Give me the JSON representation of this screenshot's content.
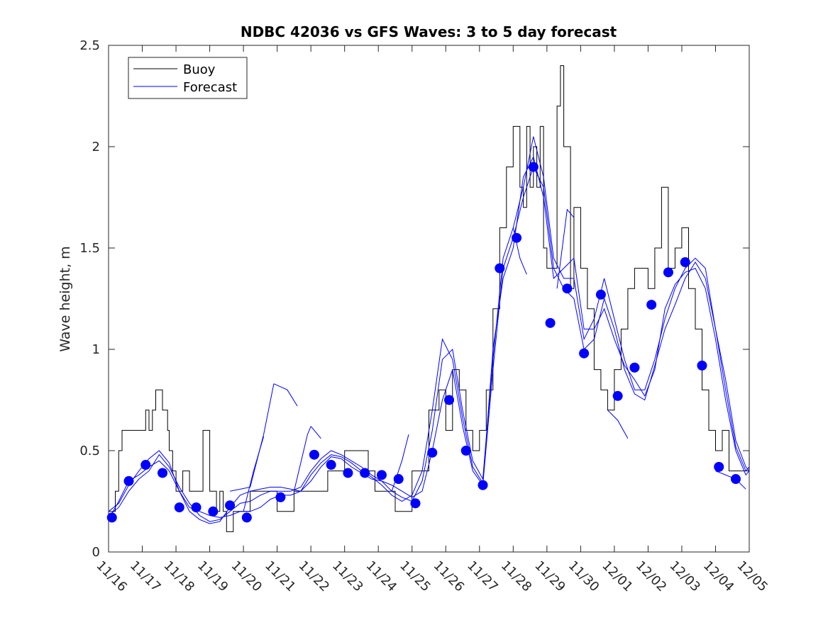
{
  "chart_data": {
    "type": "line",
    "title": "NDBC 42036 vs GFS Waves: 3 to 5 day forecast",
    "xlabel": "",
    "ylabel": "Wave height, m",
    "xlim": [
      0,
      19
    ],
    "ylim": [
      0,
      2.5
    ],
    "yticks": [
      0,
      0.5,
      1,
      1.5,
      2,
      2.5
    ],
    "ytick_labels": [
      "0",
      "0.5",
      "1",
      "1.5",
      "2",
      "2.5"
    ],
    "xtick_labels": [
      "11/16",
      "11/17",
      "11/18",
      "11/19",
      "11/20",
      "11/21",
      "11/22",
      "11/23",
      "11/24",
      "11/25",
      "11/26",
      "11/27",
      "11/28",
      "11/29",
      "11/30",
      "12/01",
      "12/02",
      "12/03",
      "12/04",
      "12/05"
    ],
    "grid": false,
    "legend_position": "top-left",
    "legend": [
      {
        "label": "Buoy",
        "color": "#000000"
      },
      {
        "label": "Forecast",
        "color": "#0000ff"
      }
    ],
    "buoy": {
      "name": "Buoy",
      "color": "#000000",
      "x": [
        0,
        0.1,
        0.2,
        0.3,
        0.4,
        0.6,
        0.8,
        1.0,
        1.1,
        1.2,
        1.3,
        1.4,
        1.5,
        1.6,
        1.7,
        1.75,
        1.8,
        1.9,
        2.0,
        2.2,
        2.4,
        2.6,
        2.8,
        3.0,
        3.2,
        3.3,
        3.4,
        3.5,
        3.6,
        3.7,
        3.9,
        4.0,
        4.2,
        4.4,
        4.6,
        4.8,
        5.0,
        5.5,
        6.0,
        6.5,
        7.0,
        7.5,
        7.7,
        7.9,
        8.0,
        8.5,
        9.0,
        9.2,
        9.5,
        9.8,
        10.0,
        10.2,
        10.4,
        10.6,
        10.8,
        11.0,
        11.2,
        11.4,
        11.6,
        11.8,
        12.0,
        12.2,
        12.3,
        12.4,
        12.5,
        12.6,
        12.7,
        12.8,
        12.9,
        13.0,
        13.1,
        13.3,
        13.4,
        13.5,
        13.7,
        13.8,
        14.0,
        14.2,
        14.4,
        14.6,
        14.8,
        15.0,
        15.2,
        15.4,
        15.6,
        15.8,
        16.0,
        16.2,
        16.4,
        16.6,
        16.8,
        17.0,
        17.2,
        17.4,
        17.6,
        17.8,
        18.0,
        18.2,
        18.4,
        18.6,
        18.8,
        19.0
      ],
      "values": [
        0.2,
        0.2,
        0.3,
        0.5,
        0.6,
        0.6,
        0.6,
        0.6,
        0.7,
        0.6,
        0.7,
        0.8,
        0.8,
        0.7,
        0.7,
        0.6,
        0.5,
        0.4,
        0.3,
        0.4,
        0.3,
        0.3,
        0.6,
        0.3,
        0.2,
        0.3,
        0.2,
        0.1,
        0.1,
        0.2,
        0.2,
        0.2,
        0.3,
        0.3,
        0.3,
        0.3,
        0.2,
        0.3,
        0.3,
        0.4,
        0.5,
        0.5,
        0.4,
        0.3,
        0.3,
        0.2,
        0.4,
        0.4,
        0.7,
        0.8,
        0.6,
        0.9,
        0.8,
        0.6,
        0.5,
        0.6,
        0.8,
        1.2,
        1.6,
        1.9,
        2.1,
        1.8,
        1.7,
        2.1,
        1.8,
        2.0,
        1.8,
        2.1,
        1.5,
        1.4,
        1.4,
        2.2,
        2.4,
        2.0,
        1.3,
        1.7,
        1.4,
        1.2,
        0.9,
        0.8,
        0.7,
        0.9,
        1.1,
        1.3,
        1.4,
        1.4,
        1.3,
        1.5,
        1.8,
        1.4,
        1.5,
        1.6,
        1.3,
        1.1,
        0.8,
        0.6,
        0.5,
        0.6,
        0.4,
        0.4,
        0.4,
        0.5
      ],
      "alt_x": [],
      "alt_values": []
    },
    "forecast_lines": [
      {
        "x": [
          0,
          0.3,
          0.6,
          0.9,
          1.2,
          1.5,
          1.8,
          2.1,
          2.4,
          2.7,
          3.0,
          3.3,
          3.6,
          3.9,
          4.2,
          4.5,
          4.8,
          5.1,
          5.4,
          5.7,
          6.0,
          6.3,
          6.6,
          6.9,
          7.2,
          7.5,
          7.8,
          8.1,
          8.4,
          8.7,
          9.0,
          9.3,
          9.6,
          9.9,
          10.2,
          10.5,
          10.8,
          11.1,
          11.4,
          11.7,
          12.0,
          12.3,
          12.6,
          12.9,
          13.2,
          13.5,
          13.8,
          14.1,
          14.4,
          14.7,
          15.0,
          15.3,
          15.6,
          15.9,
          16.2,
          16.5,
          16.8,
          17.1,
          17.4,
          17.7,
          18.0,
          18.3,
          18.6,
          18.9,
          19.0
        ],
        "values": [
          0.16,
          0.25,
          0.35,
          0.38,
          0.42,
          0.45,
          0.4,
          0.3,
          0.22,
          0.2,
          0.18,
          0.17,
          0.18,
          0.2,
          0.2,
          0.22,
          0.26,
          0.28,
          0.28,
          0.3,
          0.35,
          0.42,
          0.47,
          0.46,
          0.42,
          0.39,
          0.36,
          0.35,
          0.33,
          0.3,
          0.27,
          0.3,
          0.5,
          0.75,
          0.9,
          0.62,
          0.4,
          0.33,
          0.9,
          1.4,
          1.55,
          1.75,
          1.9,
          1.8,
          1.4,
          1.3,
          1.25,
          1.0,
          1.05,
          1.25,
          1.1,
          0.9,
          0.78,
          0.75,
          0.92,
          1.1,
          1.22,
          1.35,
          1.43,
          1.35,
          1.1,
          0.85,
          0.55,
          0.42,
          0.4
        ]
      },
      {
        "x": [
          0,
          0.3,
          0.6,
          0.9,
          1.2,
          1.5,
          1.8,
          2.1,
          2.4,
          2.7,
          3.0,
          3.3,
          3.6,
          3.9,
          4.2,
          4.5,
          4.8,
          5.1,
          5.4,
          5.7,
          6.0,
          6.3,
          6.6,
          6.9,
          7.2,
          7.5,
          7.8,
          8.1,
          8.4,
          8.7,
          9.0,
          9.3,
          9.6,
          9.9,
          10.2,
          10.5,
          10.8,
          11.1,
          11.4,
          11.7,
          12.0,
          12.3,
          12.6,
          12.9,
          13.2,
          13.5,
          13.8,
          14.1,
          14.4,
          14.7,
          15.0,
          15.3,
          15.6,
          15.9,
          16.2,
          16.5,
          16.8,
          17.1,
          17.4,
          17.7,
          18.0,
          18.3,
          18.6,
          18.9,
          19.0
        ],
        "values": [
          0.18,
          0.22,
          0.3,
          0.36,
          0.4,
          0.48,
          0.42,
          0.32,
          0.24,
          0.18,
          0.15,
          0.16,
          0.2,
          0.24,
          0.25,
          0.28,
          0.3,
          0.3,
          0.3,
          0.32,
          0.4,
          0.46,
          0.5,
          0.48,
          0.45,
          0.42,
          0.38,
          0.35,
          0.3,
          0.27,
          0.25,
          0.35,
          0.6,
          0.95,
          1.0,
          0.7,
          0.45,
          0.36,
          0.95,
          1.45,
          1.6,
          1.8,
          2.05,
          1.85,
          1.45,
          1.35,
          1.35,
          1.05,
          1.15,
          1.35,
          1.15,
          0.95,
          0.8,
          0.8,
          0.95,
          1.15,
          1.3,
          1.4,
          1.45,
          1.4,
          1.1,
          0.8,
          0.52,
          0.4,
          0.42
        ]
      },
      {
        "x": [
          0,
          0.3,
          0.6,
          0.9,
          1.2,
          1.5,
          1.8,
          2.1,
          2.4,
          2.7,
          3.0,
          3.3,
          3.6,
          3.9,
          4.2,
          4.5,
          4.8,
          5.1,
          5.4,
          5.7,
          6.0,
          6.3,
          6.6,
          6.9,
          7.2,
          7.5,
          7.8,
          8.1,
          8.4,
          8.7,
          9.0,
          9.3,
          9.6,
          9.9,
          10.2,
          10.5,
          10.8,
          11.1,
          11.4,
          11.7,
          12.0,
          12.3,
          12.6,
          12.9,
          13.2,
          13.5,
          13.8,
          14.1,
          14.4,
          14.7,
          15.0,
          15.3,
          15.6,
          15.9,
          16.2,
          16.5,
          16.8,
          17.1,
          17.4,
          17.7,
          18.0,
          18.3,
          18.6,
          18.9,
          19.0
        ],
        "values": [
          0.2,
          0.24,
          0.33,
          0.4,
          0.46,
          0.5,
          0.44,
          0.3,
          0.2,
          0.16,
          0.14,
          0.15,
          0.22,
          0.28,
          0.3,
          0.31,
          0.32,
          0.32,
          0.31,
          0.3,
          0.38,
          0.44,
          0.48,
          0.47,
          0.44,
          0.4,
          0.37,
          0.33,
          0.28,
          0.25,
          0.28,
          0.4,
          0.7,
          1.05,
          0.95,
          0.66,
          0.42,
          0.34,
          1.0,
          1.35,
          1.5,
          1.85,
          1.95,
          1.75,
          1.35,
          1.4,
          1.45,
          1.1,
          1.1,
          1.2,
          1.05,
          0.92,
          0.85,
          0.77,
          0.9,
          1.2,
          1.32,
          1.38,
          1.4,
          1.3,
          1.05,
          0.75,
          0.5,
          0.38,
          0.4
        ]
      }
    ],
    "forecast_extras": [
      {
        "x": [
          3.6,
          4.2,
          4.6,
          4.9
        ],
        "values": [
          0.3,
          0.32,
          0.58,
          0.83
        ]
      },
      {
        "x": [
          4.9,
          5.3,
          5.6
        ],
        "values": [
          0.83,
          0.8,
          0.72
        ]
      },
      {
        "x": [
          4.0,
          4.3,
          4.6
        ],
        "values": [
          0.2,
          0.4,
          0.57
        ]
      },
      {
        "x": [
          5.5,
          5.9,
          6.0
        ],
        "values": [
          0.3,
          0.58,
          0.62
        ]
      },
      {
        "x": [
          6.0,
          6.3
        ],
        "values": [
          0.62,
          0.56
        ]
      },
      {
        "x": [
          8.4,
          8.7,
          8.9
        ],
        "values": [
          0.3,
          0.45,
          0.58
        ]
      },
      {
        "x": [
          13.3,
          13.6,
          13.8
        ],
        "values": [
          1.3,
          1.69,
          1.65
        ]
      },
      {
        "x": [
          14.8,
          15.1,
          15.4
        ],
        "values": [
          0.7,
          0.65,
          0.56
        ]
      },
      {
        "x": [
          12.0,
          12.2,
          12.4
        ],
        "values": [
          1.6,
          1.45,
          1.37
        ]
      },
      {
        "x": [
          18.0,
          18.6,
          18.9
        ],
        "values": [
          0.4,
          0.36,
          0.31
        ]
      }
    ],
    "forecast_points": {
      "name": "Forecast",
      "color": "#0000ff",
      "x": [
        0.1,
        0.6,
        1.1,
        1.6,
        2.1,
        2.6,
        3.1,
        3.6,
        4.1,
        5.1,
        6.1,
        6.6,
        7.1,
        7.6,
        8.1,
        8.6,
        9.1,
        9.6,
        10.1,
        10.6,
        11.1,
        11.6,
        12.1,
        12.6,
        13.1,
        13.6,
        14.1,
        14.6,
        15.1,
        15.6,
        16.1,
        16.6,
        17.1,
        17.6,
        18.1,
        18.6
      ],
      "values": [
        0.17,
        0.35,
        0.43,
        0.39,
        0.22,
        0.22,
        0.2,
        0.23,
        0.17,
        0.27,
        0.48,
        0.43,
        0.39,
        0.39,
        0.38,
        0.36,
        0.24,
        0.49,
        0.75,
        0.5,
        0.33,
        1.4,
        1.55,
        1.9,
        1.13,
        1.3,
        0.98,
        1.27,
        0.77,
        0.91,
        1.22,
        1.38,
        1.43,
        0.92,
        0.42,
        0.36
      ]
    }
  }
}
